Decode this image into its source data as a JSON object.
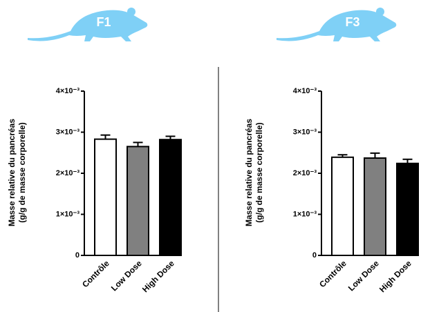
{
  "chart_data": [
    {
      "type": "bar",
      "title": "F1",
      "ylabel": [
        "Masse relative du pancréas",
        "(g/g de masse corporelle)"
      ],
      "categories": [
        "Contrôle",
        "Low Dose",
        "High Dose"
      ],
      "values": [
        0.00283,
        0.00265,
        0.00282
      ],
      "errors": [
        0.0001,
        0.0001,
        8e-05
      ],
      "colors": [
        "#ffffff",
        "#808080",
        "#000000"
      ],
      "ylim": [
        0,
        0.004
      ],
      "yticks": [
        0,
        {
          "value": 0.001,
          "label": "1×10⁻³"
        },
        {
          "value": 0.002,
          "label": "2×10⁻³"
        },
        {
          "value": 0.003,
          "label": "3×10⁻³"
        },
        {
          "value": 0.004,
          "label": "4×10⁻³"
        }
      ]
    },
    {
      "type": "bar",
      "title": "F3",
      "ylabel": [
        "Masse relative du pancréas",
        "(g/g de masse corporelle)"
      ],
      "categories": [
        "Contrôle",
        "Low Dose",
        "High Dose"
      ],
      "values": [
        0.00239,
        0.00237,
        0.00224
      ],
      "errors": [
        6e-05,
        0.00012,
        0.0001
      ],
      "colors": [
        "#ffffff",
        "#808080",
        "#000000"
      ],
      "ylim": [
        0,
        0.004
      ],
      "yticks": [
        0,
        {
          "value": 0.001,
          "label": "1×10⁻³"
        },
        {
          "value": 0.002,
          "label": "2×10⁻³"
        },
        {
          "value": 0.003,
          "label": "3×10⁻³"
        },
        {
          "value": 0.004,
          "label": "4×10⁻³"
        }
      ]
    }
  ]
}
